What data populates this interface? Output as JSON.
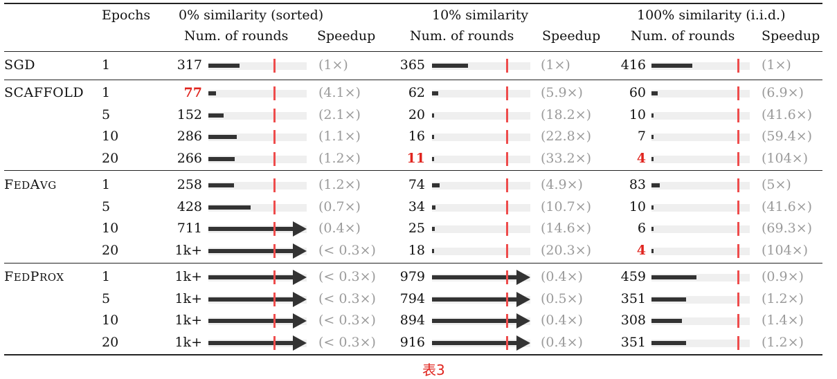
{
  "header": {
    "epochs": "Epochs",
    "groups": [
      {
        "title": "0% similarity (sorted)",
        "col_rounds": "Num. of rounds",
        "col_speedup": "Speedup"
      },
      {
        "title": "10% similarity",
        "col_rounds": "Num. of rounds",
        "col_speedup": "Speedup"
      },
      {
        "title": "100% similarity (i.i.d.)",
        "col_rounds": "Num. of rounds",
        "col_speedup": "Speedup"
      }
    ]
  },
  "methods": [
    {
      "name": "SGD",
      "smallcaps": false,
      "rows": [
        {
          "epochs": "1",
          "cells": [
            {
              "value": "317",
              "rounds": 317,
              "speedup": "(1×)",
              "best": false,
              "overflow": false
            },
            {
              "value": "365",
              "rounds": 365,
              "speedup": "(1×)",
              "best": false,
              "overflow": false
            },
            {
              "value": "416",
              "rounds": 416,
              "speedup": "(1×)",
              "best": false,
              "overflow": false
            }
          ]
        }
      ]
    },
    {
      "name": "SCAFFOLD",
      "smallcaps": false,
      "rows": [
        {
          "epochs": "1",
          "cells": [
            {
              "value": "77",
              "rounds": 77,
              "speedup": "(4.1×)",
              "best": true,
              "overflow": false
            },
            {
              "value": "62",
              "rounds": 62,
              "speedup": "(5.9×)",
              "best": false,
              "overflow": false
            },
            {
              "value": "60",
              "rounds": 60,
              "speedup": "(6.9×)",
              "best": false,
              "overflow": false
            }
          ]
        },
        {
          "epochs": "5",
          "cells": [
            {
              "value": "152",
              "rounds": 152,
              "speedup": "(2.1×)",
              "best": false,
              "overflow": false
            },
            {
              "value": "20",
              "rounds": 20,
              "speedup": "(18.2×)",
              "best": false,
              "overflow": false
            },
            {
              "value": "10",
              "rounds": 10,
              "speedup": "(41.6×)",
              "best": false,
              "overflow": false
            }
          ]
        },
        {
          "epochs": "10",
          "cells": [
            {
              "value": "286",
              "rounds": 286,
              "speedup": "(1.1×)",
              "best": false,
              "overflow": false
            },
            {
              "value": "16",
              "rounds": 16,
              "speedup": "(22.8×)",
              "best": false,
              "overflow": false
            },
            {
              "value": "7",
              "rounds": 7,
              "speedup": "(59.4×)",
              "best": false,
              "overflow": false
            }
          ]
        },
        {
          "epochs": "20",
          "cells": [
            {
              "value": "266",
              "rounds": 266,
              "speedup": "(1.2×)",
              "best": false,
              "overflow": false
            },
            {
              "value": "11",
              "rounds": 11,
              "speedup": "(33.2×)",
              "best": true,
              "overflow": false
            },
            {
              "value": "4",
              "rounds": 4,
              "speedup": "(104×)",
              "best": true,
              "overflow": false
            }
          ]
        }
      ]
    },
    {
      "name": "FedAvg",
      "smallcaps": true,
      "rows": [
        {
          "epochs": "1",
          "cells": [
            {
              "value": "258",
              "rounds": 258,
              "speedup": "(1.2×)",
              "best": false,
              "overflow": false
            },
            {
              "value": "74",
              "rounds": 74,
              "speedup": "(4.9×)",
              "best": false,
              "overflow": false
            },
            {
              "value": "83",
              "rounds": 83,
              "speedup": "(5×)",
              "best": false,
              "overflow": false
            }
          ]
        },
        {
          "epochs": "5",
          "cells": [
            {
              "value": "428",
              "rounds": 428,
              "speedup": "(0.7×)",
              "best": false,
              "overflow": false
            },
            {
              "value": "34",
              "rounds": 34,
              "speedup": "(10.7×)",
              "best": false,
              "overflow": false
            },
            {
              "value": "10",
              "rounds": 10,
              "speedup": "(41.6×)",
              "best": false,
              "overflow": false
            }
          ]
        },
        {
          "epochs": "10",
          "cells": [
            {
              "value": "711",
              "rounds": 711,
              "speedup": "(0.4×)",
              "best": false,
              "overflow": true
            },
            {
              "value": "25",
              "rounds": 25,
              "speedup": "(14.6×)",
              "best": false,
              "overflow": false
            },
            {
              "value": "6",
              "rounds": 6,
              "speedup": "(69.3×)",
              "best": false,
              "overflow": false
            }
          ]
        },
        {
          "epochs": "20",
          "cells": [
            {
              "value": "1k+",
              "rounds": 1000,
              "speedup": "(< 0.3×)",
              "best": false,
              "overflow": true
            },
            {
              "value": "18",
              "rounds": 18,
              "speedup": "(20.3×)",
              "best": false,
              "overflow": false
            },
            {
              "value": "4",
              "rounds": 4,
              "speedup": "(104×)",
              "best": true,
              "overflow": false
            }
          ]
        }
      ]
    },
    {
      "name": "FedProx",
      "smallcaps": true,
      "rows": [
        {
          "epochs": "1",
          "cells": [
            {
              "value": "1k+",
              "rounds": 1000,
              "speedup": "(< 0.3×)",
              "best": false,
              "overflow": true
            },
            {
              "value": "979",
              "rounds": 979,
              "speedup": "(0.4×)",
              "best": false,
              "overflow": true
            },
            {
              "value": "459",
              "rounds": 459,
              "speedup": "(0.9×)",
              "best": false,
              "overflow": false
            }
          ]
        },
        {
          "epochs": "5",
          "cells": [
            {
              "value": "1k+",
              "rounds": 1000,
              "speedup": "(< 0.3×)",
              "best": false,
              "overflow": true
            },
            {
              "value": "794",
              "rounds": 794,
              "speedup": "(0.5×)",
              "best": false,
              "overflow": true
            },
            {
              "value": "351",
              "rounds": 351,
              "speedup": "(1.2×)",
              "best": false,
              "overflow": false
            }
          ]
        },
        {
          "epochs": "10",
          "cells": [
            {
              "value": "1k+",
              "rounds": 1000,
              "speedup": "(< 0.3×)",
              "best": false,
              "overflow": true
            },
            {
              "value": "894",
              "rounds": 894,
              "speedup": "(0.4×)",
              "best": false,
              "overflow": true
            },
            {
              "value": "308",
              "rounds": 308,
              "speedup": "(1.4×)",
              "best": false,
              "overflow": false
            }
          ]
        },
        {
          "epochs": "20",
          "cells": [
            {
              "value": "1k+",
              "rounds": 1000,
              "speedup": "(< 0.3×)",
              "best": false,
              "overflow": true
            },
            {
              "value": "916",
              "rounds": 916,
              "speedup": "(0.4×)",
              "best": false,
              "overflow": true
            },
            {
              "value": "351",
              "rounds": 351,
              "speedup": "(1.2×)",
              "best": false,
              "overflow": false
            }
          ]
        }
      ]
    }
  ],
  "caption": "表3",
  "colors": {
    "bar": "#333333",
    "track": "#efefef",
    "marker": "#ee4c4c",
    "best": "#e0251f",
    "speedup": "#9a9a9a"
  }
}
